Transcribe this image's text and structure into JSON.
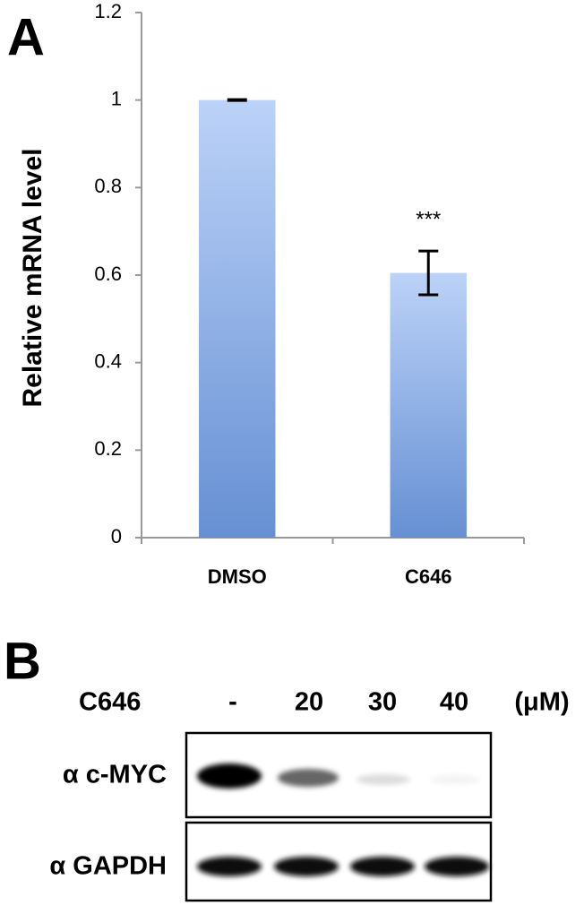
{
  "chart_data": {
    "type": "bar",
    "panel_label": "A",
    "ylabel": "Relative mRNA level",
    "categories": [
      "DMSO",
      "C646"
    ],
    "values": [
      1,
      0.605
    ],
    "errors": [
      0.001,
      0.05
    ],
    "annotation": "***",
    "annotation_category": 1,
    "ylim": [
      0,
      1.2
    ],
    "yticks": [
      0,
      0.2,
      0.4,
      0.6,
      0.8,
      1,
      1.2
    ],
    "grid": false,
    "color_top": "#bcd2f8",
    "color_bottom": "#6690d3"
  },
  "blot": {
    "panel_label": "B",
    "treatment": "C646",
    "lanes": [
      "-",
      "20",
      "30",
      "40"
    ],
    "unit": "(μM)",
    "rows": [
      "α c-MYC",
      "α GAPDH"
    ]
  }
}
